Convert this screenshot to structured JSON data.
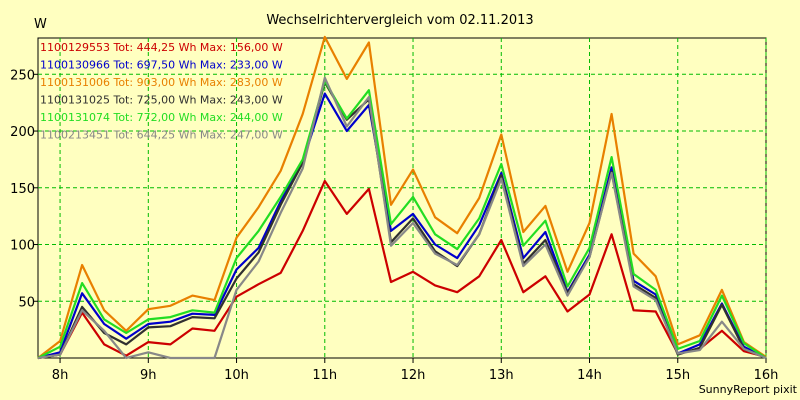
{
  "chart_data": {
    "type": "line",
    "title": "Wechselrichtervergleich vom 02.11.2013",
    "ylabel": "W",
    "xlabel": "",
    "credit": "SunnyReport pixit",
    "x_tick_labels": [
      "8h",
      "9h",
      "10h",
      "11h",
      "12h",
      "13h",
      "14h",
      "15h",
      "16h"
    ],
    "y_ticks": [
      50,
      100,
      150,
      200,
      250
    ],
    "ylim": [
      0,
      282
    ],
    "grid": true,
    "legend_position": "top-left",
    "x": [
      7.75,
      8.0,
      8.25,
      8.5,
      8.75,
      9.0,
      9.25,
      9.5,
      9.75,
      10.0,
      10.25,
      10.5,
      10.75,
      11.0,
      11.25,
      11.5,
      11.75,
      12.0,
      12.25,
      12.5,
      12.75,
      13.0,
      13.25,
      13.5,
      13.75,
      14.0,
      14.25,
      14.5,
      14.75,
      15.0,
      15.25,
      15.5,
      15.75,
      16.0
    ],
    "series": [
      {
        "name": "1100129553 Tot: 444,25 Wh Max: 156,00 W",
        "color": "#cc0000",
        "values": [
          0,
          3,
          40,
          12,
          2,
          14,
          12,
          26,
          24,
          54,
          65,
          75,
          112,
          156,
          127,
          149,
          67,
          76,
          64,
          58,
          72,
          104,
          58,
          72,
          41,
          56,
          109,
          42,
          41,
          4,
          8,
          24,
          6,
          1
        ]
      },
      {
        "name": "1100130966 Tot: 697,50 Wh Max: 233,00 W",
        "color": "#0000cc",
        "values": [
          0,
          5,
          57,
          30,
          17,
          30,
          32,
          39,
          38,
          78,
          97,
          138,
          173,
          233,
          200,
          223,
          112,
          127,
          100,
          88,
          117,
          163,
          88,
          111,
          58,
          91,
          168,
          68,
          56,
          4,
          12,
          48,
          10,
          0
        ]
      },
      {
        "name": "1100131006 Tot: 903,00 Wh Max: 283,00 W",
        "color": "#e88000",
        "values": [
          0,
          15,
          82,
          42,
          24,
          43,
          46,
          55,
          51,
          106,
          133,
          165,
          215,
          283,
          246,
          278,
          135,
          166,
          124,
          110,
          141,
          197,
          111,
          134,
          76,
          119,
          215,
          92,
          72,
          12,
          20,
          60,
          14,
          1
        ]
      },
      {
        "name": "1100131025 Tot: 725,00 Wh Max: 243,00 W",
        "color": "#303030",
        "values": [
          0,
          3,
          45,
          22,
          12,
          27,
          28,
          36,
          35,
          70,
          93,
          135,
          172,
          243,
          210,
          228,
          102,
          123,
          94,
          81,
          109,
          161,
          83,
          104,
          57,
          89,
          164,
          65,
          53,
          3,
          9,
          47,
          8,
          0
        ]
      },
      {
        "name": "1100131074 Tot: 772,00 Wh Max: 244,00 W",
        "color": "#22dd22",
        "values": [
          0,
          10,
          66,
          34,
          22,
          34,
          36,
          42,
          40,
          88,
          112,
          142,
          175,
          244,
          211,
          236,
          118,
          142,
          109,
          96,
          123,
          171,
          99,
          121,
          63,
          97,
          177,
          74,
          60,
          8,
          15,
          55,
          13,
          0
        ]
      },
      {
        "name": "1100213451 Tot: 644,25 Wh Max: 247,00 W",
        "color": "#888888",
        "values": [
          0,
          3,
          42,
          24,
          0,
          5,
          0,
          0,
          0,
          60,
          85,
          128,
          167,
          247,
          204,
          230,
          99,
          119,
          92,
          82,
          109,
          158,
          81,
          100,
          55,
          89,
          163,
          63,
          51,
          4,
          7,
          32,
          8,
          0
        ]
      }
    ]
  }
}
